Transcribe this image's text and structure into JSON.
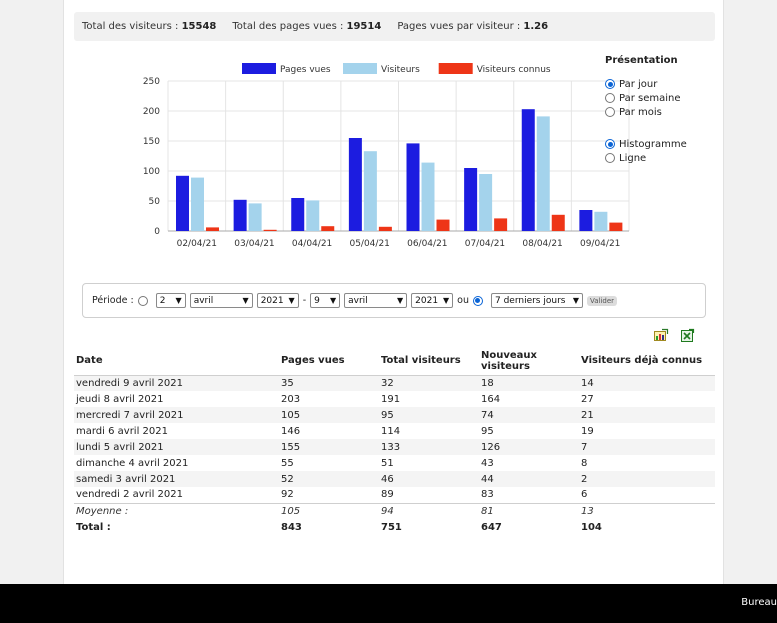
{
  "summary": {
    "visitors_label": "Total des visiteurs :",
    "visitors_value": "15548",
    "pages_label": "Total des pages vues :",
    "pages_value": "19514",
    "ppv_label": "Pages vues par visiteur :",
    "ppv_value": "1.26"
  },
  "chart_data": {
    "type": "bar",
    "categories": [
      "02/04/21",
      "03/04/21",
      "04/04/21",
      "05/04/21",
      "06/04/21",
      "07/04/21",
      "08/04/21",
      "09/04/21"
    ],
    "series": [
      {
        "name": "Pages vues",
        "color": "#1c1ce0",
        "values": [
          92,
          52,
          55,
          155,
          146,
          105,
          203,
          35
        ]
      },
      {
        "name": "Visiteurs",
        "color": "#a4d3ec",
        "values": [
          89,
          46,
          51,
          133,
          114,
          95,
          191,
          32
        ]
      },
      {
        "name": "Visiteurs connus",
        "color": "#ee3517",
        "values": [
          6,
          2,
          8,
          7,
          19,
          21,
          27,
          14
        ]
      }
    ],
    "yticks": [
      "0",
      "50",
      "100",
      "150",
      "200",
      "250"
    ],
    "ylim": [
      0,
      250
    ],
    "grid": true,
    "legend": "top"
  },
  "presentation": {
    "title": "Présentation",
    "period_options": [
      "Par jour",
      "Par semaine",
      "Par mois"
    ],
    "type_options": [
      "Histogramme",
      "Ligne"
    ]
  },
  "period": {
    "label": "Période :",
    "from_day": "2",
    "from_month": "avril",
    "from_year": "2021",
    "dash": "-",
    "to_day": "9",
    "to_month": "avril",
    "to_year": "2021",
    "or": "ou",
    "range": "7 derniers jours",
    "valider": "Valider"
  },
  "table": {
    "headers": [
      "Date",
      "Pages vues",
      "Total visiteurs",
      "Nouveaux visiteurs",
      "Visiteurs déjà connus"
    ],
    "rows": [
      [
        "vendredi 9 avril 2021",
        "35",
        "32",
        "18",
        "14"
      ],
      [
        "jeudi 8 avril 2021",
        "203",
        "191",
        "164",
        "27"
      ],
      [
        "mercredi 7 avril 2021",
        "105",
        "95",
        "74",
        "21"
      ],
      [
        "mardi 6 avril 2021",
        "146",
        "114",
        "95",
        "19"
      ],
      [
        "lundi 5 avril 2021",
        "155",
        "133",
        "126",
        "7"
      ],
      [
        "dimanche 4 avril 2021",
        "55",
        "51",
        "43",
        "8"
      ],
      [
        "samedi 3 avril 2021",
        "52",
        "46",
        "44",
        "2"
      ],
      [
        "vendredi 2 avril 2021",
        "92",
        "89",
        "83",
        "6"
      ]
    ],
    "average": [
      "Moyenne :",
      "105",
      "94",
      "81",
      "13"
    ],
    "total": [
      "Total :",
      "843",
      "751",
      "647",
      "104"
    ]
  },
  "icons": [
    "export-chart-icon",
    "excel-export-icon"
  ],
  "taskbar": {
    "label": "Bureau"
  }
}
